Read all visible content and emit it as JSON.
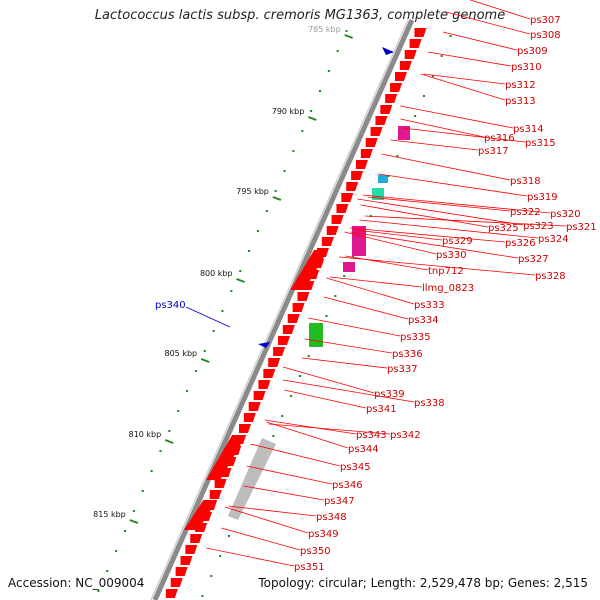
{
  "title": "Lactococcus lactis subsp. cremoris MG1363, complete genome",
  "accession": "Accession: NC_009004",
  "summary": "Topology: circular; Length: 2,529,478 bp; Genes: 2,515",
  "colors": {
    "cds": "#ff0000",
    "label": "#cc0000",
    "highlight": "#0000cc",
    "backbone": "#888888",
    "tick": "#1a8a1a"
  },
  "scale_labels": [
    "785 kbp",
    "790 kbp",
    "795 kbp",
    "800 kbp",
    "805 kbp",
    "810 kbp",
    "815 kbp"
  ],
  "feature_labels": [
    "ps307",
    "ps308",
    "ps309",
    "ps310",
    "ps312",
    "ps313",
    "ps314",
    "ps316",
    "ps315",
    "ps317",
    "ps318",
    "ps319",
    "ps320",
    "ps322",
    "ps321",
    "ps323",
    "ps325",
    "ps324",
    "ps326",
    "ps329",
    "ps327",
    "ps330",
    "ps328",
    "tnp712",
    "llmg_0823",
    "ps333",
    "ps334",
    "ps335",
    "ps336",
    "ps337",
    "ps339",
    "ps338",
    "ps341",
    "ps343",
    "ps342",
    "ps344",
    "ps345",
    "ps346",
    "ps347",
    "ps348",
    "ps349",
    "ps350",
    "ps351"
  ],
  "highlight_label": "ps340"
}
